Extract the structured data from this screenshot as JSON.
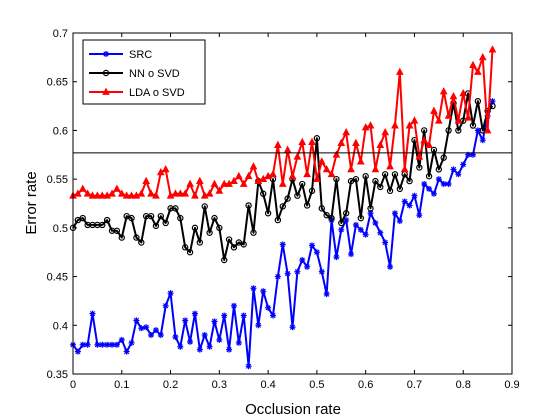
{
  "chart_data": {
    "type": "line",
    "xlabel": "Occlusion rate",
    "ylabel": "Error rate",
    "xlim": [
      0,
      0.9
    ],
    "ylim": [
      0.35,
      0.7
    ],
    "xticks": [
      "0",
      "0.1",
      "0.2",
      "0.3",
      "0.4",
      "0.5",
      "0.6",
      "0.7",
      "0.8",
      "0.9"
    ],
    "yticks": [
      "0.35",
      "0.4",
      "0.45",
      "0.5",
      "0.55",
      "0.6",
      "0.65",
      "0.7"
    ],
    "xticks_values": [
      0,
      0.1,
      0.2,
      0.3,
      0.4,
      0.5,
      0.6,
      0.7,
      0.8,
      0.9
    ],
    "yticks_values": [
      0.35,
      0.4,
      0.45,
      0.5,
      0.55,
      0.6,
      0.65,
      0.7
    ],
    "legend_position": "top-left",
    "grid": false,
    "reference_line": {
      "y": 0.577,
      "color": "#000000"
    },
    "series": [
      {
        "name": "SRC",
        "color": "#0000ff",
        "marker": "star",
        "x": [
          0,
          0.01,
          0.02,
          0.03,
          0.04,
          0.05,
          0.06,
          0.07,
          0.08,
          0.09,
          0.1,
          0.11,
          0.12,
          0.13,
          0.14,
          0.15,
          0.16,
          0.17,
          0.18,
          0.19,
          0.2,
          0.21,
          0.22,
          0.23,
          0.24,
          0.25,
          0.26,
          0.27,
          0.28,
          0.29,
          0.3,
          0.31,
          0.32,
          0.33,
          0.34,
          0.35,
          0.36,
          0.37,
          0.38,
          0.39,
          0.4,
          0.41,
          0.42,
          0.43,
          0.44,
          0.45,
          0.46,
          0.47,
          0.48,
          0.49,
          0.5,
          0.51,
          0.52,
          0.53,
          0.54,
          0.55,
          0.56,
          0.57,
          0.58,
          0.59,
          0.6,
          0.61,
          0.62,
          0.63,
          0.64,
          0.65,
          0.66,
          0.67,
          0.68,
          0.69,
          0.7,
          0.71,
          0.72,
          0.73,
          0.74,
          0.75,
          0.76,
          0.77,
          0.78,
          0.79,
          0.8,
          0.81,
          0.82,
          0.83,
          0.84,
          0.85,
          0.86
        ],
        "y": [
          0.38,
          0.373,
          0.38,
          0.38,
          0.412,
          0.38,
          0.38,
          0.38,
          0.38,
          0.38,
          0.385,
          0.373,
          0.382,
          0.405,
          0.397,
          0.398,
          0.39,
          0.395,
          0.39,
          0.42,
          0.433,
          0.388,
          0.378,
          0.405,
          0.383,
          0.412,
          0.375,
          0.39,
          0.378,
          0.404,
          0.385,
          0.41,
          0.375,
          0.42,
          0.382,
          0.41,
          0.358,
          0.438,
          0.4,
          0.435,
          0.418,
          0.41,
          0.45,
          0.483,
          0.453,
          0.398,
          0.455,
          0.467,
          0.46,
          0.482,
          0.475,
          0.455,
          0.432,
          0.508,
          0.47,
          0.498,
          0.508,
          0.473,
          0.503,
          0.498,
          0.493,
          0.515,
          0.505,
          0.495,
          0.485,
          0.46,
          0.515,
          0.507,
          0.527,
          0.523,
          0.533,
          0.513,
          0.545,
          0.54,
          0.535,
          0.55,
          0.545,
          0.545,
          0.56,
          0.555,
          0.565,
          0.575,
          0.575,
          0.6,
          0.59,
          0.615,
          0.63
        ]
      },
      {
        "name": "NN o SVD",
        "color": "#000000",
        "marker": "circle",
        "x": [
          0,
          0.01,
          0.02,
          0.03,
          0.04,
          0.05,
          0.06,
          0.07,
          0.08,
          0.09,
          0.1,
          0.11,
          0.12,
          0.13,
          0.14,
          0.15,
          0.16,
          0.17,
          0.18,
          0.19,
          0.2,
          0.21,
          0.22,
          0.23,
          0.24,
          0.25,
          0.26,
          0.27,
          0.28,
          0.29,
          0.3,
          0.31,
          0.32,
          0.33,
          0.34,
          0.35,
          0.36,
          0.37,
          0.38,
          0.39,
          0.4,
          0.41,
          0.42,
          0.43,
          0.44,
          0.45,
          0.46,
          0.47,
          0.48,
          0.49,
          0.5,
          0.51,
          0.52,
          0.53,
          0.54,
          0.55,
          0.56,
          0.57,
          0.58,
          0.59,
          0.6,
          0.61,
          0.62,
          0.63,
          0.64,
          0.65,
          0.66,
          0.67,
          0.68,
          0.69,
          0.7,
          0.71,
          0.72,
          0.73,
          0.74,
          0.75,
          0.76,
          0.77,
          0.78,
          0.79,
          0.8,
          0.81,
          0.82,
          0.83,
          0.84,
          0.85,
          0.86
        ],
        "y": [
          0.5,
          0.508,
          0.51,
          0.503,
          0.503,
          0.503,
          0.503,
          0.508,
          0.497,
          0.497,
          0.49,
          0.512,
          0.51,
          0.49,
          0.485,
          0.512,
          0.512,
          0.502,
          0.512,
          0.505,
          0.52,
          0.52,
          0.51,
          0.48,
          0.475,
          0.5,
          0.485,
          0.522,
          0.495,
          0.51,
          0.5,
          0.467,
          0.488,
          0.48,
          0.485,
          0.483,
          0.523,
          0.495,
          0.548,
          0.535,
          0.515,
          0.55,
          0.508,
          0.522,
          0.53,
          0.55,
          0.533,
          0.545,
          0.523,
          0.538,
          0.592,
          0.52,
          0.513,
          0.51,
          0.55,
          0.505,
          0.515,
          0.548,
          0.55,
          0.51,
          0.553,
          0.52,
          0.548,
          0.542,
          0.555,
          0.538,
          0.555,
          0.54,
          0.555,
          0.548,
          0.59,
          0.562,
          0.6,
          0.553,
          0.58,
          0.56,
          0.572,
          0.6,
          0.628,
          0.6,
          0.61,
          0.638,
          0.605,
          0.63,
          0.6,
          0.62,
          0.625
        ]
      },
      {
        "name": "LDA o SVD",
        "color": "#ff0000",
        "marker": "triangle",
        "x": [
          0,
          0.01,
          0.02,
          0.03,
          0.04,
          0.05,
          0.06,
          0.07,
          0.08,
          0.09,
          0.1,
          0.11,
          0.12,
          0.13,
          0.14,
          0.15,
          0.16,
          0.17,
          0.18,
          0.19,
          0.2,
          0.21,
          0.22,
          0.23,
          0.24,
          0.25,
          0.26,
          0.27,
          0.28,
          0.29,
          0.3,
          0.31,
          0.32,
          0.33,
          0.34,
          0.35,
          0.36,
          0.37,
          0.38,
          0.39,
          0.4,
          0.41,
          0.42,
          0.43,
          0.44,
          0.45,
          0.46,
          0.47,
          0.48,
          0.49,
          0.5,
          0.51,
          0.52,
          0.53,
          0.54,
          0.55,
          0.56,
          0.57,
          0.58,
          0.59,
          0.6,
          0.61,
          0.62,
          0.63,
          0.64,
          0.65,
          0.66,
          0.67,
          0.68,
          0.69,
          0.7,
          0.71,
          0.72,
          0.73,
          0.74,
          0.75,
          0.76,
          0.77,
          0.78,
          0.79,
          0.8,
          0.81,
          0.82,
          0.83,
          0.84,
          0.85,
          0.86
        ],
        "y": [
          0.533,
          0.535,
          0.54,
          0.535,
          0.533,
          0.533,
          0.533,
          0.533,
          0.535,
          0.54,
          0.535,
          0.533,
          0.533,
          0.533,
          0.535,
          0.548,
          0.535,
          0.533,
          0.557,
          0.56,
          0.533,
          0.535,
          0.535,
          0.535,
          0.545,
          0.533,
          0.548,
          0.533,
          0.535,
          0.545,
          0.538,
          0.545,
          0.545,
          0.548,
          0.553,
          0.545,
          0.553,
          0.563,
          0.548,
          0.55,
          0.553,
          0.555,
          0.585,
          0.545,
          0.58,
          0.553,
          0.573,
          0.588,
          0.555,
          0.588,
          0.55,
          0.568,
          0.56,
          0.555,
          0.575,
          0.587,
          0.598,
          0.56,
          0.587,
          0.568,
          0.603,
          0.605,
          0.56,
          0.585,
          0.598,
          0.563,
          0.605,
          0.66,
          0.56,
          0.605,
          0.61,
          0.573,
          0.59,
          0.585,
          0.62,
          0.61,
          0.64,
          0.615,
          0.635,
          0.61,
          0.638,
          0.613,
          0.667,
          0.66,
          0.675,
          0.6,
          0.683
        ]
      }
    ]
  }
}
